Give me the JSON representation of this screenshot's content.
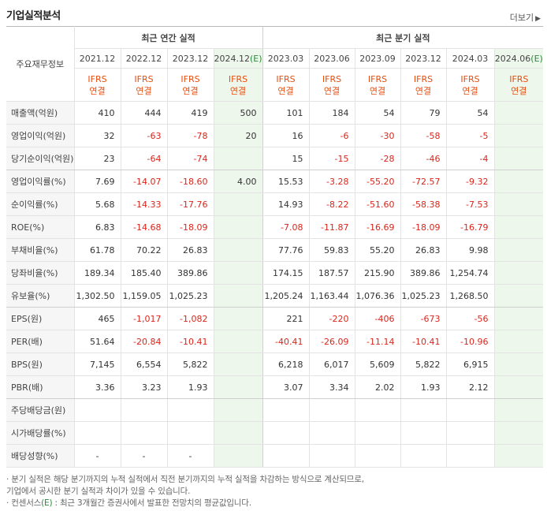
{
  "title": "기업실적분석",
  "more_label": "더보기",
  "more_arrow": "▶",
  "row_header": "주요재무정보",
  "annual_header": "최근 연간 실적",
  "quarter_header": "최근 분기 실적",
  "est_mark": "(E)",
  "periods": [
    {
      "label": "2021.12",
      "est": false
    },
    {
      "label": "2022.12",
      "est": false
    },
    {
      "label": "2023.12",
      "est": false
    },
    {
      "label": "2024.12",
      "est": true
    },
    {
      "label": "2023.03",
      "est": false
    },
    {
      "label": "2023.06",
      "est": false
    },
    {
      "label": "2023.09",
      "est": false
    },
    {
      "label": "2023.12",
      "est": false
    },
    {
      "label": "2024.03",
      "est": false
    },
    {
      "label": "2024.06",
      "est": true
    }
  ],
  "basis_top": "IFRS",
  "basis_bottom": "연결",
  "rows": [
    {
      "label": "매출액(억원)",
      "values": [
        "410",
        "444",
        "419",
        "500",
        "101",
        "184",
        "54",
        "79",
        "54",
        ""
      ]
    },
    {
      "label": "영업이익(억원)",
      "values": [
        "32",
        "-63",
        "-78",
        "20",
        "16",
        "-6",
        "-30",
        "-58",
        "-5",
        ""
      ]
    },
    {
      "label": "당기순이익(억원)",
      "values": [
        "23",
        "-64",
        "-74",
        "",
        "15",
        "-15",
        "-28",
        "-46",
        "-4",
        ""
      ]
    },
    {
      "label": "영업이익률(%)",
      "values": [
        "7.69",
        "-14.07",
        "-18.60",
        "4.00",
        "15.53",
        "-3.28",
        "-55.20",
        "-72.57",
        "-9.32",
        ""
      ]
    },
    {
      "label": "순이익률(%)",
      "values": [
        "5.68",
        "-14.33",
        "-17.76",
        "",
        "14.93",
        "-8.22",
        "-51.60",
        "-58.38",
        "-7.53",
        ""
      ]
    },
    {
      "label": "ROE(%)",
      "values": [
        "6.83",
        "-14.68",
        "-18.09",
        "",
        "-7.08",
        "-11.87",
        "-16.69",
        "-18.09",
        "-16.79",
        ""
      ]
    },
    {
      "label": "부채비율(%)",
      "values": [
        "61.78",
        "70.22",
        "26.83",
        "",
        "77.76",
        "59.83",
        "55.20",
        "26.83",
        "9.98",
        ""
      ]
    },
    {
      "label": "당좌비율(%)",
      "values": [
        "189.34",
        "185.40",
        "389.86",
        "",
        "174.15",
        "187.57",
        "215.90",
        "389.86",
        "1,254.74",
        ""
      ]
    },
    {
      "label": "유보율(%)",
      "values": [
        "1,302.50",
        "1,159.05",
        "1,025.23",
        "",
        "1,205.24",
        "1,163.44",
        "1,076.36",
        "1,025.23",
        "1,268.50",
        ""
      ]
    },
    {
      "label": "EPS(원)",
      "values": [
        "465",
        "-1,017",
        "-1,082",
        "",
        "221",
        "-220",
        "-406",
        "-673",
        "-56",
        ""
      ]
    },
    {
      "label": "PER(배)",
      "values": [
        "51.64",
        "-20.84",
        "-10.41",
        "",
        "-40.41",
        "-26.09",
        "-11.14",
        "-10.41",
        "-10.96",
        ""
      ]
    },
    {
      "label": "BPS(원)",
      "values": [
        "7,145",
        "6,554",
        "5,822",
        "",
        "6,218",
        "6,017",
        "5,609",
        "5,822",
        "6,915",
        ""
      ]
    },
    {
      "label": "PBR(배)",
      "values": [
        "3.36",
        "3.23",
        "1.93",
        "",
        "3.07",
        "3.34",
        "2.02",
        "1.93",
        "2.12",
        ""
      ]
    },
    {
      "label": "주당배당금(원)",
      "values": [
        "",
        "",
        "",
        "",
        "",
        "",
        "",
        "",
        "",
        ""
      ]
    },
    {
      "label": "시가배당률(%)",
      "values": [
        "",
        "",
        "",
        "",
        "",
        "",
        "",
        "",
        "",
        ""
      ]
    },
    {
      "label": "배당성향(%)",
      "values": [
        "-",
        "-",
        "-",
        "",
        "",
        "",
        "",
        "",
        "",
        ""
      ]
    }
  ],
  "group_ends": [
    2,
    8,
    12
  ],
  "notes": [
    "· 분기 실적은 해당 분기까지의 누적 실적에서 직전 분기까지의 누적 실적을 차감하는 방식으로 계산되므로,",
    "  기업에서 공시한 분기 실적과 차이가 있을 수 있습니다."
  ],
  "consensus_prefix": "· 컨센서스",
  "consensus_mark": "(E)",
  "consensus_text": " : 최근 3개월간 증권사에서 발표한 전망치의 평균값입니다.",
  "colors": {
    "negative": "#d9261c",
    "ifrs": "#e84d0e",
    "estimate_bg": "#eef7ec",
    "estimate_mark": "#2a8a3a"
  }
}
